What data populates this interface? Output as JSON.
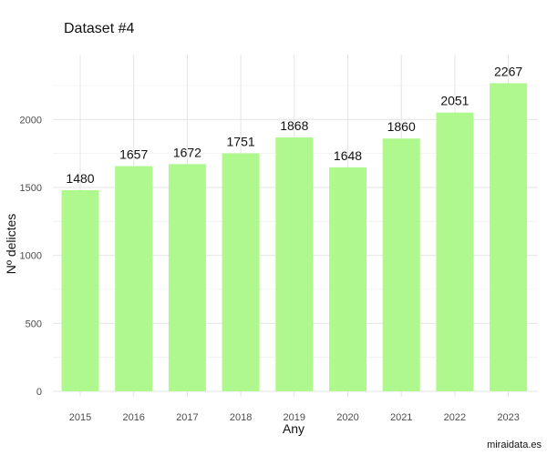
{
  "chart_data": {
    "type": "bar",
    "title": "Dataset #4",
    "xlabel": "Any",
    "ylabel": "Nº delictes",
    "categories": [
      "2015",
      "2016",
      "2017",
      "2018",
      "2019",
      "2020",
      "2021",
      "2022",
      "2023"
    ],
    "values": [
      1480,
      1657,
      1672,
      1751,
      1868,
      1648,
      1860,
      2051,
      2267
    ],
    "data_labels": [
      "1480",
      "1657",
      "1672",
      "1751",
      "1868",
      "1648",
      "1860",
      "2051",
      "2267"
    ],
    "yticks": [
      0,
      500,
      1000,
      1500,
      2000
    ],
    "ytick_labels": [
      "0",
      "500",
      "1000",
      "1500",
      "2000"
    ],
    "ylim": [
      0,
      2400
    ],
    "grid": true,
    "legend": "none",
    "bar_color": "#aff88e",
    "caption": "miraidata.es"
  }
}
